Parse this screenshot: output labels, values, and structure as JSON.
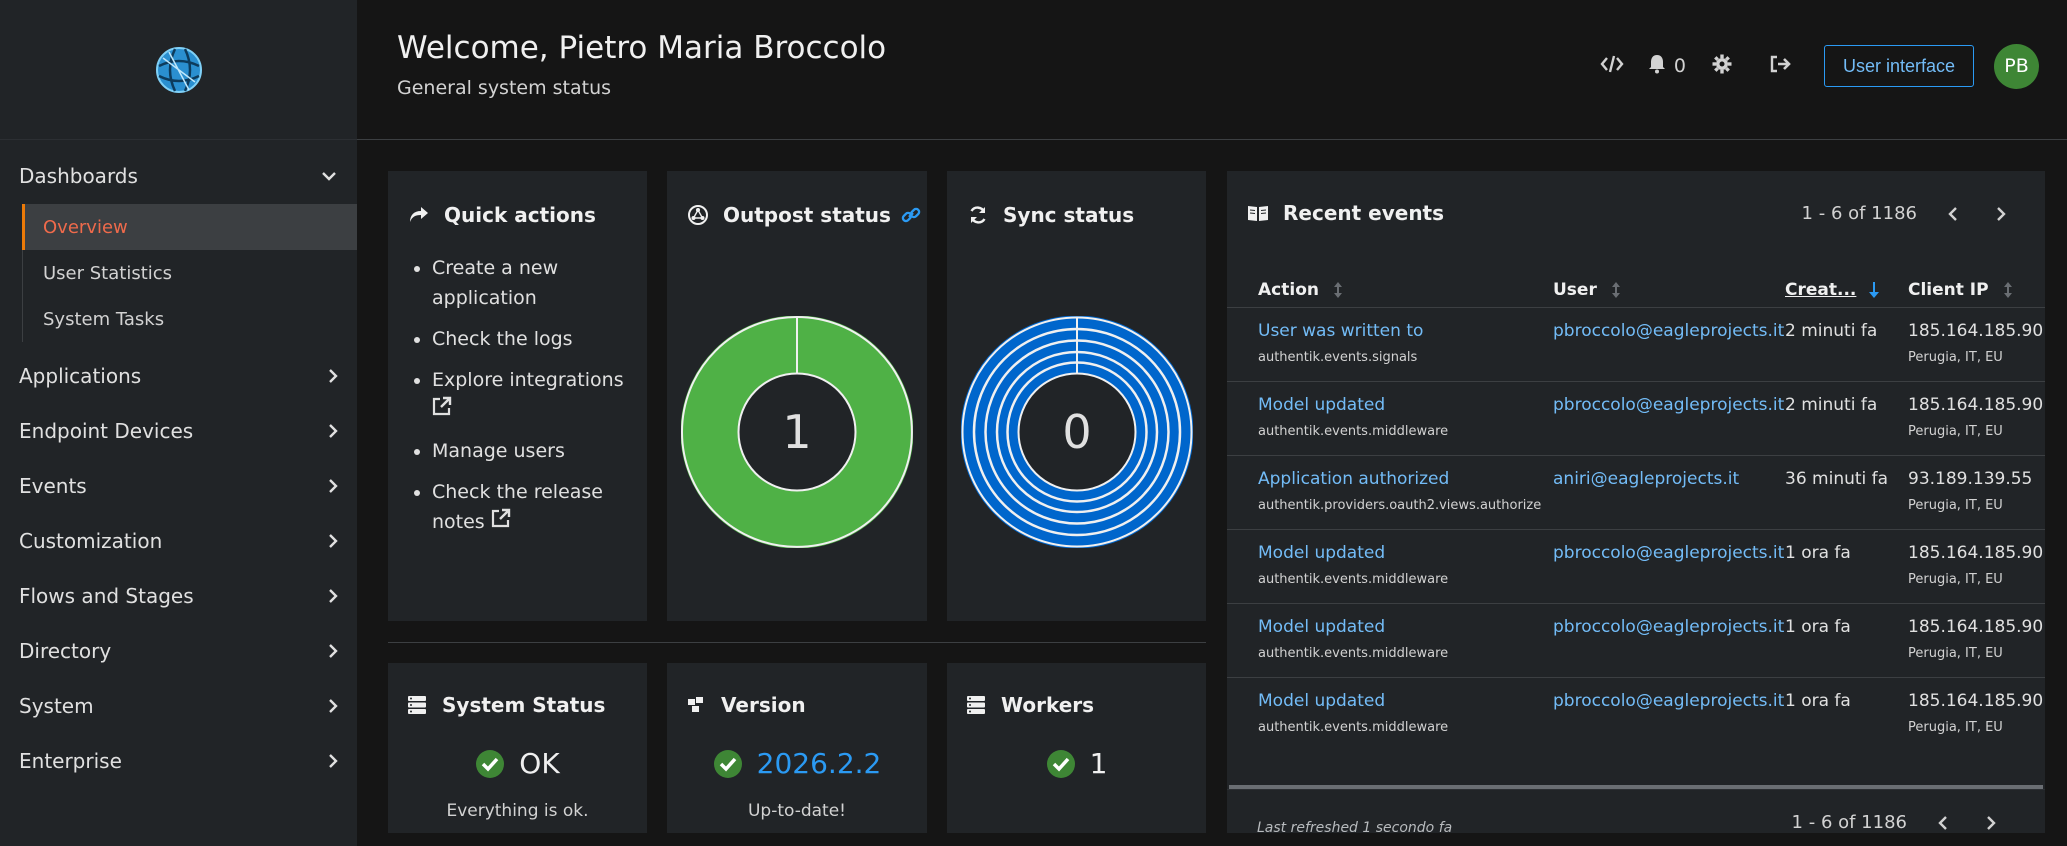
{
  "sidebar": {
    "dashboards_label": "Dashboards",
    "sub_items": [
      {
        "label": "Overview"
      },
      {
        "label": "User Statistics"
      },
      {
        "label": "System Tasks"
      }
    ],
    "items": [
      {
        "label": "Applications"
      },
      {
        "label": "Endpoint Devices"
      },
      {
        "label": "Events"
      },
      {
        "label": "Customization"
      },
      {
        "label": "Flows and Stages"
      },
      {
        "label": "Directory"
      },
      {
        "label": "System"
      },
      {
        "label": "Enterprise"
      }
    ]
  },
  "header": {
    "title": "Welcome, Pietro Maria Broccolo",
    "subtitle": "General system status",
    "notification_count": "0",
    "user_interface_label": "User interface",
    "avatar_initials": "PB"
  },
  "quick_actions": {
    "title": "Quick actions",
    "items": [
      "Create a new application",
      "Check the logs",
      "Explore integrations",
      "Manage users",
      "Check the release notes"
    ]
  },
  "outpost_status": {
    "title": "Outpost status",
    "value": "1",
    "color": "#4fb146"
  },
  "sync_status": {
    "title": "Sync status",
    "value": "0",
    "color": "#0066cc"
  },
  "system_status": {
    "title": "System Status",
    "value": "OK",
    "subtext": "Everything is ok."
  },
  "version": {
    "title": "Version",
    "value": "2026.2.2",
    "subtext": "Up-to-date!"
  },
  "workers": {
    "title": "Workers",
    "value": "1"
  },
  "recent_events": {
    "title": "Recent events",
    "pagination": "1 - 6 of 1186",
    "columns": [
      "Action",
      "User",
      "Creat...",
      "Client IP"
    ],
    "rows": [
      {
        "action": "User was written to",
        "source": "authentik.events.signals",
        "user": "pbroccolo@eagleprojects.it",
        "created": "2 minuti fa",
        "ip": "185.164.185.90",
        "location": "Perugia, IT, EU"
      },
      {
        "action": "Model updated",
        "source": "authentik.events.middleware",
        "user": "pbroccolo@eagleprojects.it",
        "created": "2 minuti fa",
        "ip": "185.164.185.90",
        "location": "Perugia, IT, EU"
      },
      {
        "action": "Application authorized",
        "source": "authentik.providers.oauth2.views.authorize",
        "user": "aniri@eagleprojects.it",
        "created": "36 minuti fa",
        "ip": "93.189.139.55",
        "location": "Perugia, IT, EU"
      },
      {
        "action": "Model updated",
        "source": "authentik.events.middleware",
        "user": "pbroccolo@eagleprojects.it",
        "created": "1 ora fa",
        "ip": "185.164.185.90",
        "location": "Perugia, IT, EU"
      },
      {
        "action": "Model updated",
        "source": "authentik.events.middleware",
        "user": "pbroccolo@eagleprojects.it",
        "created": "1 ora fa",
        "ip": "185.164.185.90",
        "location": "Perugia, IT, EU"
      },
      {
        "action": "Model updated",
        "source": "authentik.events.middleware",
        "user": "pbroccolo@eagleprojects.it",
        "created": "1 ora fa",
        "ip": "185.164.185.90",
        "location": "Perugia, IT, EU"
      }
    ],
    "last_refreshed": "Last refreshed 1 secondo fa"
  },
  "colors": {
    "accent_blue": "#73bcf7",
    "ok_green": "#3e8635",
    "active_nav": "#ef6a4b"
  }
}
